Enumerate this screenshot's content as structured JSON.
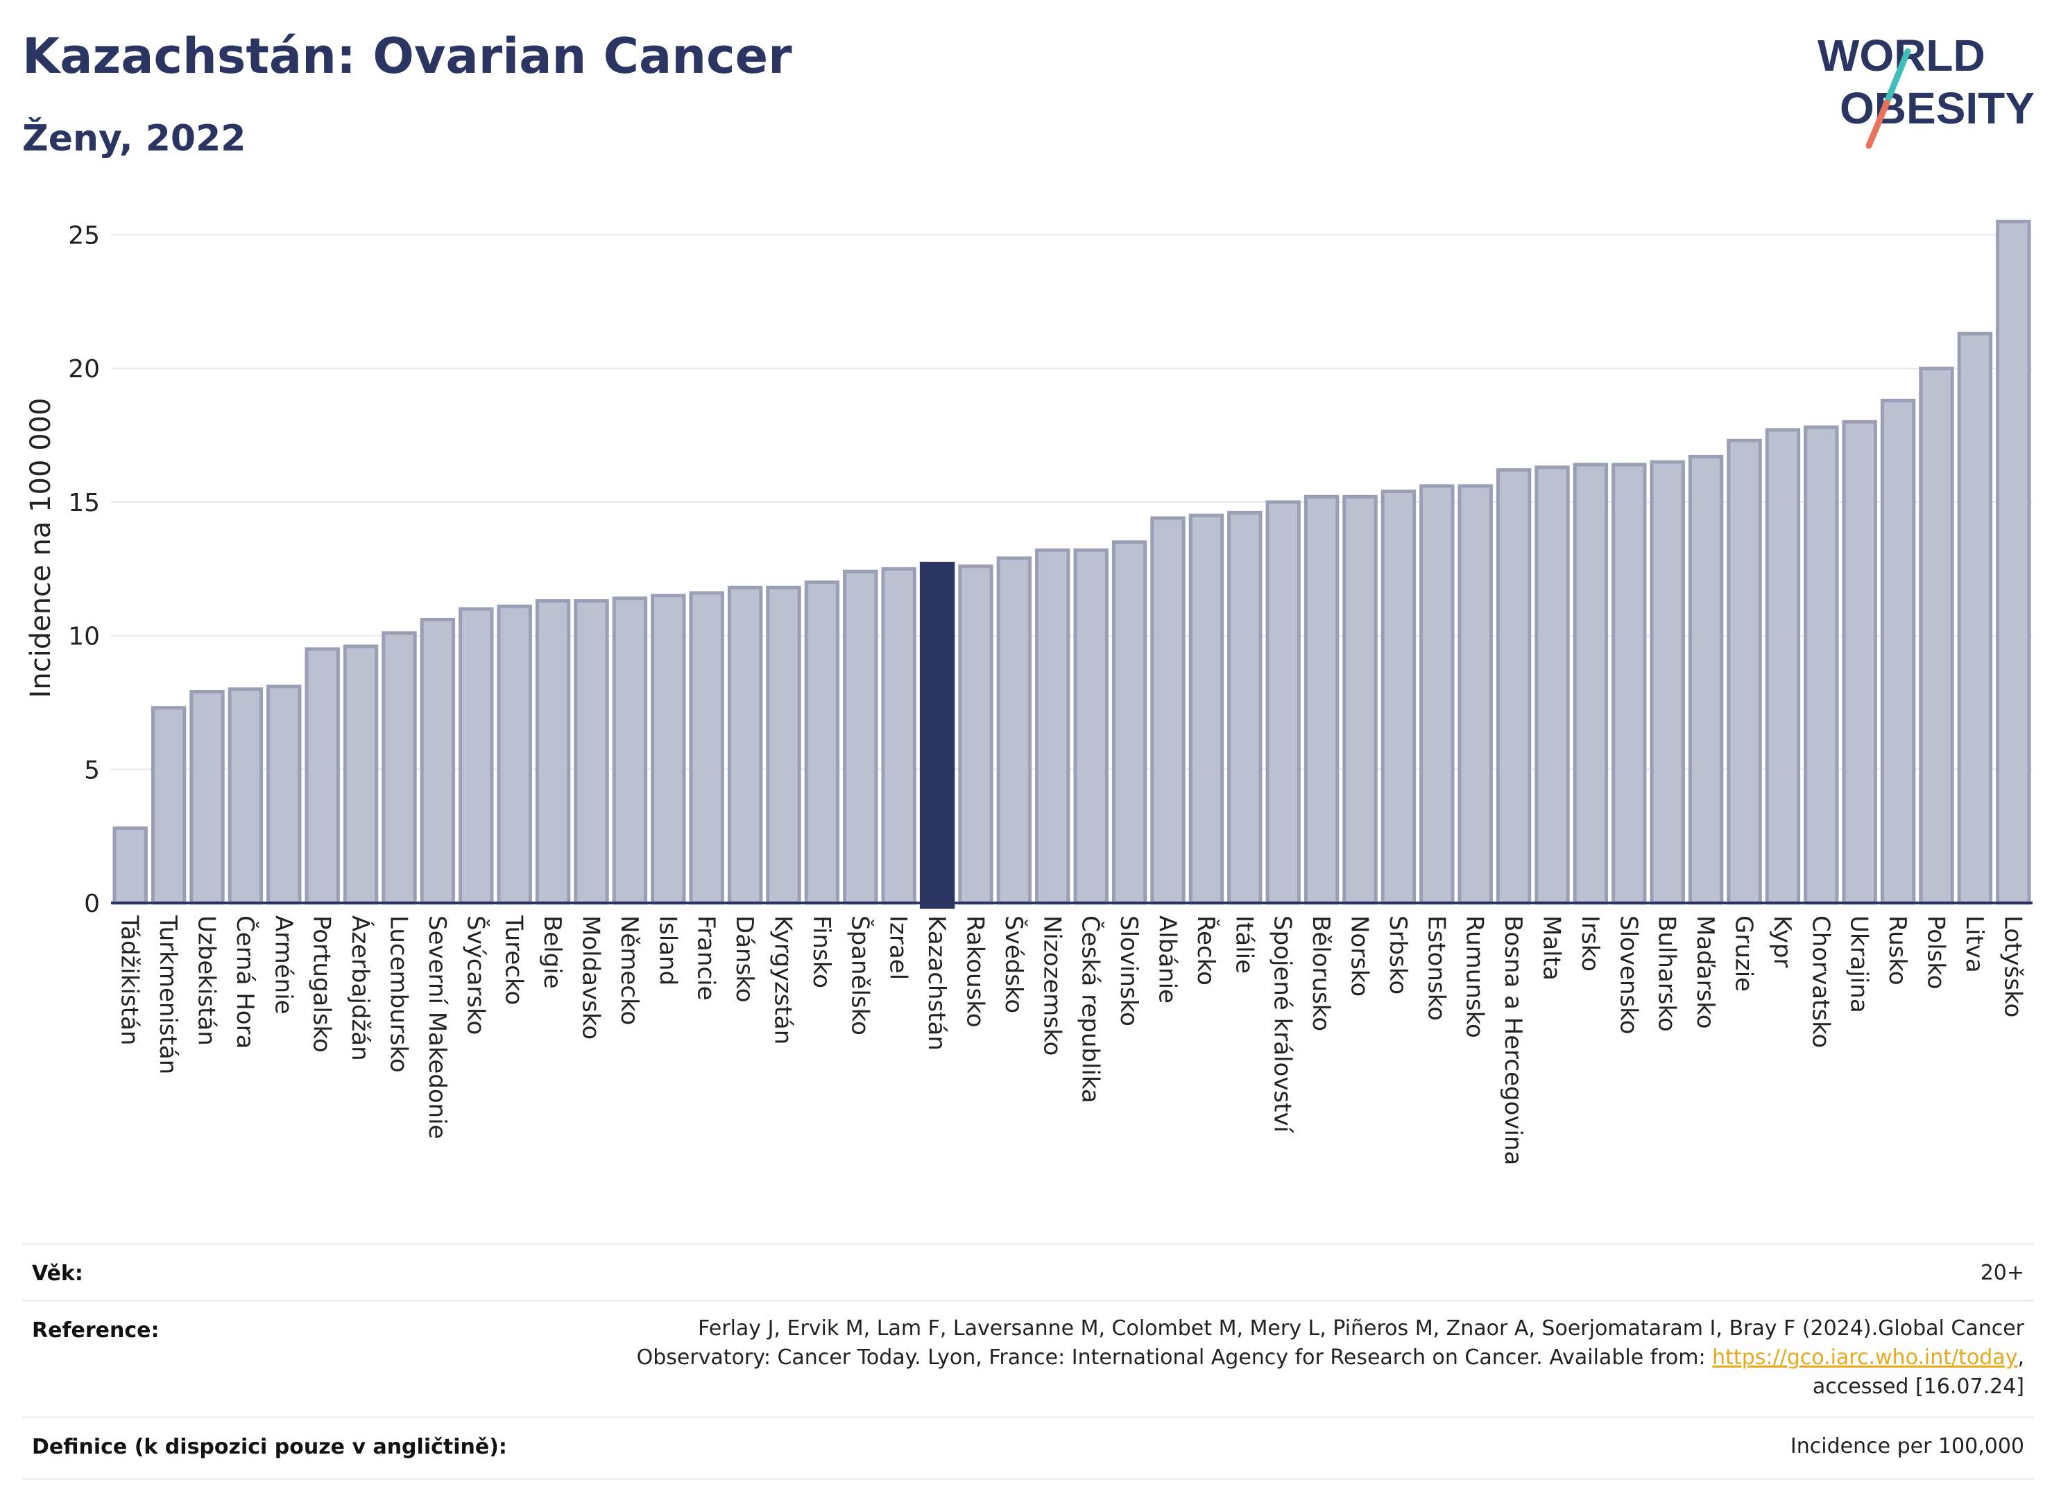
{
  "header": {
    "title": "Kazachstán: Ovarian Cancer",
    "subtitle": "Ženy, 2022"
  },
  "logo": {
    "line1": "WORLD",
    "line2": "OBESITY",
    "colors": {
      "text": "#2a3561",
      "slash_top": "#3fbfb8",
      "slash_bottom": "#e8735a"
    }
  },
  "colors": {
    "bar": "#bcc0d0",
    "bar_stroke": "#9a9fb6",
    "highlight": "#2a3561",
    "axis_text": "#222222",
    "grid": "#e6e8ec"
  },
  "chart_data": {
    "type": "bar",
    "ylabel": "Incidence na 100 000",
    "xlabel": "",
    "ylim": [
      0,
      26
    ],
    "yticks": [
      0,
      5,
      10,
      15,
      20,
      25
    ],
    "highlight": "Kazachstán",
    "grid": true,
    "categories": [
      "Tádžikistán",
      "Turkmenistán",
      "Uzbekistán",
      "Černá Hora",
      "Arménie",
      "Portugalsko",
      "Ázerbajdžán",
      "Lucembursko",
      "Severní Makedonie",
      "Švýcarsko",
      "Turecko",
      "Belgie",
      "Moldavsko",
      "Německo",
      "Island",
      "Francie",
      "Dánsko",
      "Kyrgyzstán",
      "Finsko",
      "Španělsko",
      "Izrael",
      "Kazachstán",
      "Rakousko",
      "Švédsko",
      "Nizozemsko",
      "Česká republika",
      "Slovinsko",
      "Albánie",
      "Řecko",
      "Itálie",
      "Spojené království",
      "Bělorusko",
      "Norsko",
      "Srbsko",
      "Estonsko",
      "Rumunsko",
      "Bosna a Hercegovina",
      "Malta",
      "Irsko",
      "Slovensko",
      "Bulharsko",
      "Maďarsko",
      "Gruzie",
      "Kypr",
      "Chorvatsko",
      "Ukrajina",
      "Rusko",
      "Polsko",
      "Litva",
      "Lotyšsko"
    ],
    "values": [
      2.8,
      7.3,
      7.9,
      8.0,
      8.1,
      9.5,
      9.6,
      10.1,
      10.6,
      11.0,
      11.1,
      11.3,
      11.3,
      11.4,
      11.5,
      11.6,
      11.8,
      11.8,
      12.0,
      12.4,
      12.5,
      12.7,
      12.6,
      12.9,
      13.2,
      13.2,
      13.5,
      14.4,
      14.5,
      14.6,
      15.0,
      15.2,
      15.2,
      15.4,
      15.6,
      15.6,
      16.2,
      16.3,
      16.4,
      16.4,
      16.5,
      16.7,
      17.3,
      17.7,
      17.8,
      18.0,
      18.8,
      20.0,
      21.3,
      25.5
    ]
  },
  "info": {
    "age_label": "Věk:",
    "age_value": "20+",
    "reference_label": "Reference:",
    "reference_line1": "Ferlay J, Ervik M, Lam F, Laversanne M, Colombet M, Mery L, Piñeros M, Znaor A, Soerjomataram I, Bray F (2024).Global Cancer",
    "reference_line2_prefix": "Observatory: Cancer Today. Lyon, France: International Agency for Research on Cancer. Available from: ",
    "reference_link": "https://gco.iarc.who.int/today",
    "reference_line2_suffix": ",",
    "reference_line3": "accessed [16.07.24]",
    "definition_label": "Definice (k dispozici pouze v angličtině):",
    "definition_value": "Incidence per 100,000"
  }
}
